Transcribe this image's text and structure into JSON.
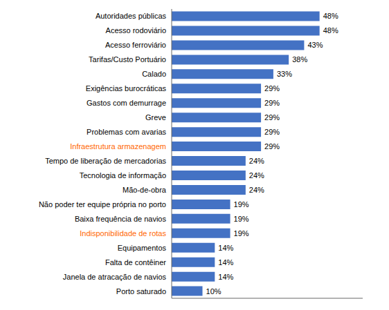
{
  "chart_data": {
    "type": "bar",
    "orientation": "horizontal",
    "categories": [
      "Porto saturado",
      "Janela de atracação de navios",
      "Falta de contêiner",
      "Equipamentos",
      "Indisponibilidade de rotas",
      "Baixa frequência de navios",
      "Não poder ter equipe própria no porto",
      "Mão-de-obra",
      "Tecnologia de informação",
      "Tempo de liberação de mercadorias",
      "Infraestrutura armazenagem",
      "Problemas com avarias",
      "Greve",
      "Gastos com demurrage",
      "Exigências burocráticas",
      "Calado",
      "Tarifas/Custo Portuário",
      "Acesso ferroviário",
      "Acesso rodoviário",
      "Autoridades públicas"
    ],
    "values": [
      10,
      14,
      14,
      14,
      19,
      19,
      19,
      24,
      24,
      24,
      29,
      29,
      29,
      29,
      29,
      33,
      38,
      43,
      48,
      48
    ],
    "value_labels": [
      "10%",
      "14%",
      "14%",
      "14%",
      "19%",
      "19%",
      "19%",
      "24%",
      "24%",
      "24%",
      "29%",
      "29%",
      "29%",
      "29%",
      "29%",
      "33%",
      "38%",
      "43%",
      "48%",
      "48%"
    ],
    "data_labels": true,
    "color": "#4472C4",
    "label_colors": [
      "#000000",
      "#000000",
      "#000000",
      "#000000",
      "#FF6600",
      "#000000",
      "#000000",
      "#000000",
      "#000000",
      "#000000",
      "#FF6600",
      "#000000",
      "#000000",
      "#000000",
      "#000000",
      "#000000",
      "#000000",
      "#000000",
      "#000000",
      "#000000"
    ],
    "xlim": [
      0,
      62
    ],
    "tick_labels": "y",
    "grid": false
  }
}
